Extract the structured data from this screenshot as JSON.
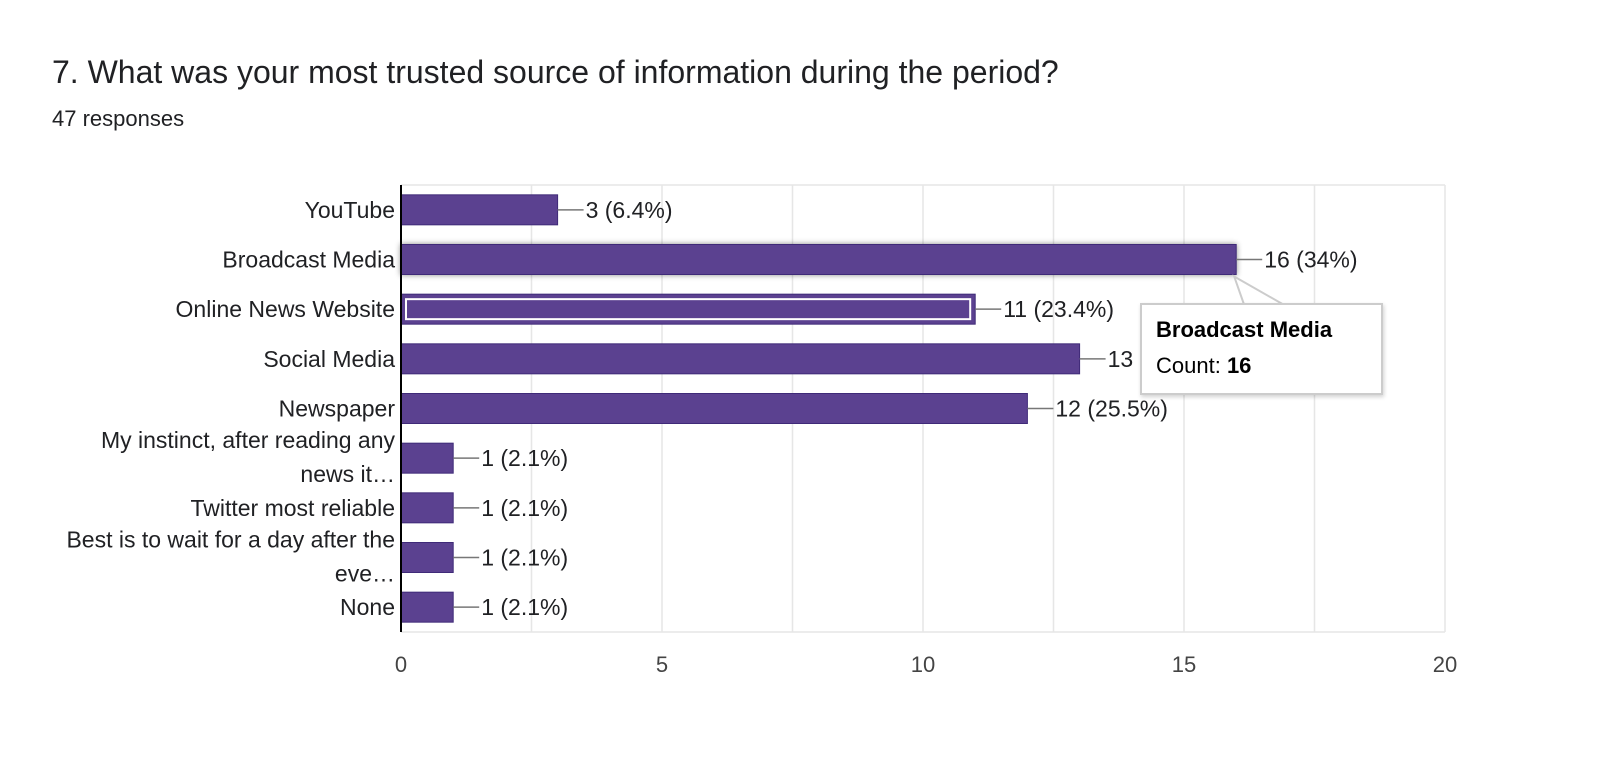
{
  "question": {
    "title": "7. What was your most trusted source of information during the period?",
    "responses": "47 responses"
  },
  "tooltip": {
    "title": "Broadcast Media",
    "count_label": "Count: ",
    "count_value": "16"
  },
  "colors": {
    "bar": "#5b4190",
    "bar_edge": "#3f2a78",
    "grid": "#e6e6e6",
    "axis": "#000000",
    "label": "#202124",
    "tick": "#444444"
  },
  "chart_data": {
    "type": "bar",
    "orientation": "horizontal",
    "title": "7. What was your most trusted source of information during the period?",
    "categories": [
      [
        "YouTube"
      ],
      [
        "Broadcast Media"
      ],
      [
        "Online News Website"
      ],
      [
        "Social Media"
      ],
      [
        "Newspaper"
      ],
      [
        "My instinct, after reading any",
        "news it…"
      ],
      [
        "Twitter most reliable"
      ],
      [
        "Best is to wait for a day after the",
        "eve…"
      ],
      [
        "None"
      ]
    ],
    "values": [
      3,
      16,
      11,
      13,
      12,
      1,
      1,
      1,
      1
    ],
    "data_labels": [
      "3 (6.4%)",
      "16 (34%)",
      "11 (23.4%)",
      "13",
      "12 (25.5%)",
      "1 (2.1%)",
      "1 (2.1%)",
      "1 (2.1%)",
      "1 (2.1%)"
    ],
    "highlighted_index": 1,
    "selected_index": 2,
    "xlim": [
      0,
      20
    ],
    "xticks": [
      0,
      5,
      10,
      15,
      20
    ],
    "grid": true
  }
}
